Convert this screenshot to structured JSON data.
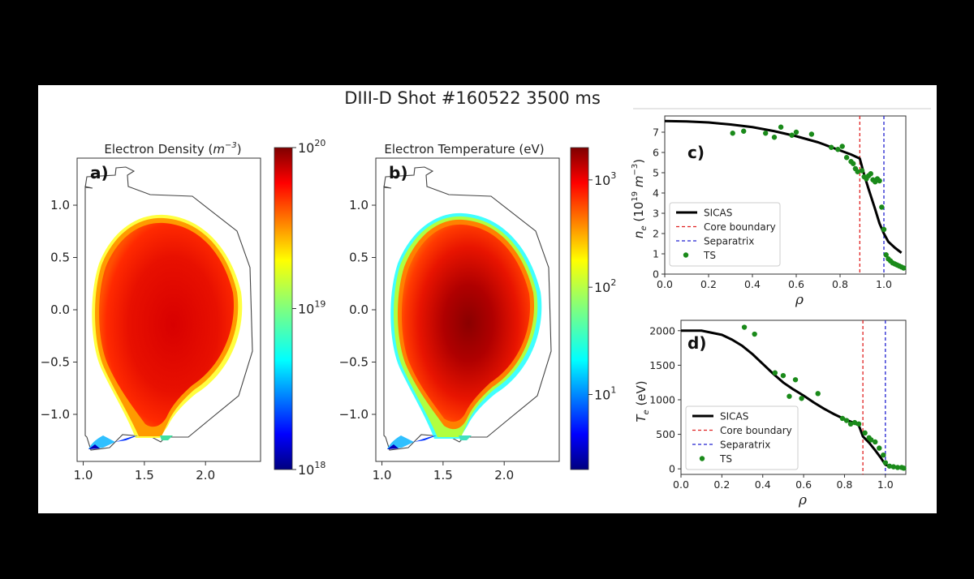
{
  "figure": {
    "title": "DIII-D Shot #160522 3500 ms"
  },
  "colors": {
    "frame_bg": "#000000",
    "panel_bg": "#ffffff",
    "fit_line": "#000000",
    "core_boundary": "#e02020",
    "separatrix": "#2020d0",
    "ts_points": "#1a8a1a"
  },
  "chart_data": [
    {
      "id": "a",
      "type": "heatmap",
      "panel_label": "a)",
      "title": "Electron Density (m⁻³)",
      "title_text": "Electron Density (",
      "title_unit": "m",
      "title_exp": "−3",
      "xlim": [
        0.95,
        2.45
      ],
      "ylim": [
        -1.45,
        1.45
      ],
      "xticks": [
        1.0,
        1.5,
        2.0
      ],
      "xtick_labels": [
        "1.0",
        "1.5",
        "2.0"
      ],
      "yticks": [
        1.0,
        0.5,
        0.0,
        -0.5,
        -1.0
      ],
      "ytick_labels": [
        "1.0",
        "0.5",
        "0.0",
        "−0.5",
        "−1.0"
      ],
      "colorbar": {
        "scale": "log",
        "range": [
          1e+18,
          1e+20
        ],
        "tick_values": [
          1e+20,
          1e+19,
          1e+18
        ],
        "tick_labels": [
          {
            "base": "10",
            "exp": "20"
          },
          {
            "base": "10",
            "exp": "19"
          },
          {
            "base": "10",
            "exp": "18"
          }
        ],
        "colormap": "jet"
      }
    },
    {
      "id": "b",
      "type": "heatmap",
      "panel_label": "b)",
      "title": "Electron Temperature (eV)",
      "xlim": [
        0.95,
        2.45
      ],
      "ylim": [
        -1.45,
        1.45
      ],
      "xticks": [
        1.0,
        1.5,
        2.0
      ],
      "xtick_labels": [
        "1.0",
        "1.5",
        "2.0"
      ],
      "yticks": [
        1.0,
        0.5,
        0.0,
        -0.5,
        -1.0
      ],
      "ytick_labels": [
        "1.0",
        "0.5",
        "0.0",
        "−0.5",
        "−1.0"
      ],
      "colorbar": {
        "scale": "log",
        "range": [
          2,
          2000
        ],
        "tick_values": [
          1000,
          100,
          10
        ],
        "tick_labels": [
          {
            "base": "10",
            "exp": "3"
          },
          {
            "base": "10",
            "exp": "2"
          },
          {
            "base": "10",
            "exp": "1"
          }
        ],
        "colormap": "jet"
      }
    },
    {
      "id": "c",
      "type": "line",
      "panel_label": "c)",
      "xlabel": "ρ",
      "ylabel": "n_e (10^19 m^-3)",
      "ylabel_parts": {
        "sym": "n",
        "sub": "e",
        "pre": " (10",
        "exp": "19",
        "unit": " m",
        "exp2": "−3",
        "post": ")"
      },
      "xlim": [
        0.0,
        1.1
      ],
      "ylim": [
        0,
        7.8
      ],
      "xticks": [
        0.0,
        0.2,
        0.4,
        0.6,
        0.8,
        1.0
      ],
      "xtick_labels": [
        "0.0",
        "0.2",
        "0.4",
        "0.6",
        "0.8",
        "1.0"
      ],
      "yticks": [
        0,
        1,
        2,
        3,
        4,
        5,
        6,
        7
      ],
      "ytick_labels": [
        "0",
        "1",
        "2",
        "3",
        "4",
        "5",
        "6",
        "7"
      ],
      "vlines": [
        {
          "name": "Core boundary",
          "x": 0.89
        },
        {
          "name": "Separatrix",
          "x": 1.0
        }
      ],
      "series": [
        {
          "name": "SICAS",
          "kind": "line",
          "x": [
            0.0,
            0.1,
            0.2,
            0.3,
            0.4,
            0.5,
            0.6,
            0.7,
            0.8,
            0.85,
            0.89,
            0.91,
            0.93,
            0.96,
            0.98,
            1.0,
            1.02,
            1.05,
            1.08
          ],
          "y": [
            7.55,
            7.53,
            7.48,
            7.38,
            7.25,
            7.05,
            6.8,
            6.5,
            6.1,
            5.9,
            5.7,
            4.9,
            4.2,
            3.2,
            2.5,
            2.0,
            1.6,
            1.3,
            1.05
          ]
        },
        {
          "name": "TS",
          "kind": "scatter",
          "x": [
            0.31,
            0.36,
            0.46,
            0.5,
            0.53,
            0.58,
            0.6,
            0.67,
            0.76,
            0.79,
            0.81,
            0.83,
            0.85,
            0.86,
            0.87,
            0.88,
            0.9,
            0.91,
            0.92,
            0.93,
            0.94,
            0.95,
            0.96,
            0.97,
            0.98,
            0.99,
            1.0,
            1.01,
            1.02,
            1.03,
            1.04,
            1.05,
            1.06,
            1.07,
            1.08,
            1.09
          ],
          "y": [
            6.95,
            7.05,
            6.95,
            6.75,
            7.25,
            6.85,
            7.0,
            6.9,
            6.25,
            6.15,
            6.3,
            5.75,
            5.55,
            5.45,
            5.2,
            5.05,
            5.1,
            4.8,
            4.7,
            4.85,
            4.95,
            4.65,
            4.55,
            4.7,
            4.6,
            3.3,
            2.2,
            0.95,
            0.75,
            0.65,
            0.55,
            0.5,
            0.45,
            0.4,
            0.35,
            0.3
          ]
        }
      ],
      "legend": {
        "placement": "lower-left",
        "entries": [
          "SICAS",
          "Core boundary",
          "Separatrix",
          "TS"
        ]
      }
    },
    {
      "id": "d",
      "type": "line",
      "panel_label": "d)",
      "xlabel": "ρ",
      "ylabel": "T_e (eV)",
      "ylabel_parts": {
        "sym": "T",
        "sub": "e",
        "post": " (eV)"
      },
      "xlim": [
        0.0,
        1.1
      ],
      "ylim": [
        -80,
        2150
      ],
      "xticks": [
        0.0,
        0.2,
        0.4,
        0.6,
        0.8,
        1.0
      ],
      "xtick_labels": [
        "0.0",
        "0.2",
        "0.4",
        "0.6",
        "0.8",
        "1.0"
      ],
      "yticks": [
        0,
        500,
        1000,
        1500,
        2000
      ],
      "ytick_labels": [
        "0",
        "500",
        "1000",
        "1500",
        "2000"
      ],
      "vlines": [
        {
          "name": "Core boundary",
          "x": 0.89
        },
        {
          "name": "Separatrix",
          "x": 1.0
        }
      ],
      "series": [
        {
          "name": "SICAS",
          "kind": "line",
          "x": [
            0.0,
            0.1,
            0.2,
            0.25,
            0.3,
            0.35,
            0.4,
            0.45,
            0.5,
            0.55,
            0.6,
            0.65,
            0.7,
            0.75,
            0.8,
            0.85,
            0.87,
            0.89,
            0.92,
            0.95,
            0.98,
            1.0,
            1.03,
            1.06,
            1.09
          ],
          "y": [
            2000,
            2000,
            1940,
            1870,
            1780,
            1660,
            1520,
            1380,
            1250,
            1150,
            1060,
            960,
            870,
            790,
            720,
            660,
            630,
            470,
            380,
            270,
            150,
            60,
            30,
            20,
            15
          ]
        },
        {
          "name": "TS",
          "kind": "scatter",
          "x": [
            0.31,
            0.36,
            0.46,
            0.5,
            0.53,
            0.56,
            0.59,
            0.67,
            0.79,
            0.81,
            0.83,
            0.85,
            0.87,
            0.9,
            0.92,
            0.93,
            0.95,
            0.97,
            0.99,
            1.0,
            1.02,
            1.04,
            1.06,
            1.08,
            1.09
          ],
          "y": [
            2050,
            1950,
            1390,
            1350,
            1050,
            1290,
            1020,
            1090,
            730,
            700,
            650,
            670,
            650,
            520,
            450,
            420,
            390,
            300,
            200,
            90,
            40,
            30,
            20,
            20,
            10
          ]
        }
      ],
      "legend": {
        "placement": "lower-left",
        "entries": [
          "SICAS",
          "Core boundary",
          "Separatrix",
          "TS"
        ]
      }
    }
  ]
}
